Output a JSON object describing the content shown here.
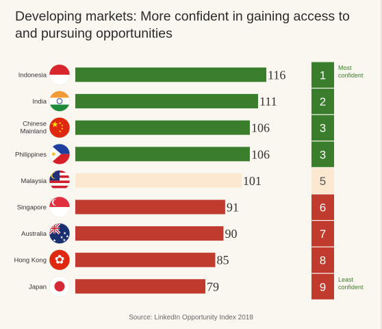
{
  "title": "Developing markets: More confident in gaining access to and pursuing opportunities",
  "source": "Source: LinkedIn Opportunity Index 2018",
  "notes": {
    "top": [
      "Most",
      "confident"
    ],
    "bottom": [
      "Least",
      "confident"
    ]
  },
  "colors": {
    "green": "#3a7d2c",
    "cream": "#fce8d0",
    "red": "#c03a2e",
    "rank_text_light": "#ffffff",
    "rank_text_dark": "#555555",
    "note_green": "#3f7d2e",
    "note_red": "#c03a2e"
  },
  "chart_data": {
    "type": "bar",
    "orientation": "horizontal",
    "categories": [
      [
        "Indonesia"
      ],
      [
        "India"
      ],
      [
        "Chinese",
        "Mainland"
      ],
      [
        "Philippines"
      ],
      [
        "Malaysia"
      ],
      [
        "Singapore"
      ],
      [
        "Australia"
      ],
      [
        "Hong Kong"
      ],
      [
        "Japan"
      ]
    ],
    "values": [
      116,
      111,
      106,
      106,
      101,
      91,
      90,
      85,
      79
    ],
    "ranks": [
      "1",
      "2",
      "3",
      "3",
      "5",
      "6",
      "7",
      "8",
      "9"
    ],
    "groups": [
      "green",
      "green",
      "green",
      "green",
      "cream",
      "red",
      "red",
      "red",
      "red"
    ],
    "flags": [
      "indonesia-flag",
      "india-flag",
      "china-flag",
      "philippines-flag",
      "malaysia-flag",
      "singapore-flag",
      "australia-flag",
      "hong-kong-flag",
      "japan-flag"
    ],
    "xlim": [
      0,
      116
    ]
  }
}
